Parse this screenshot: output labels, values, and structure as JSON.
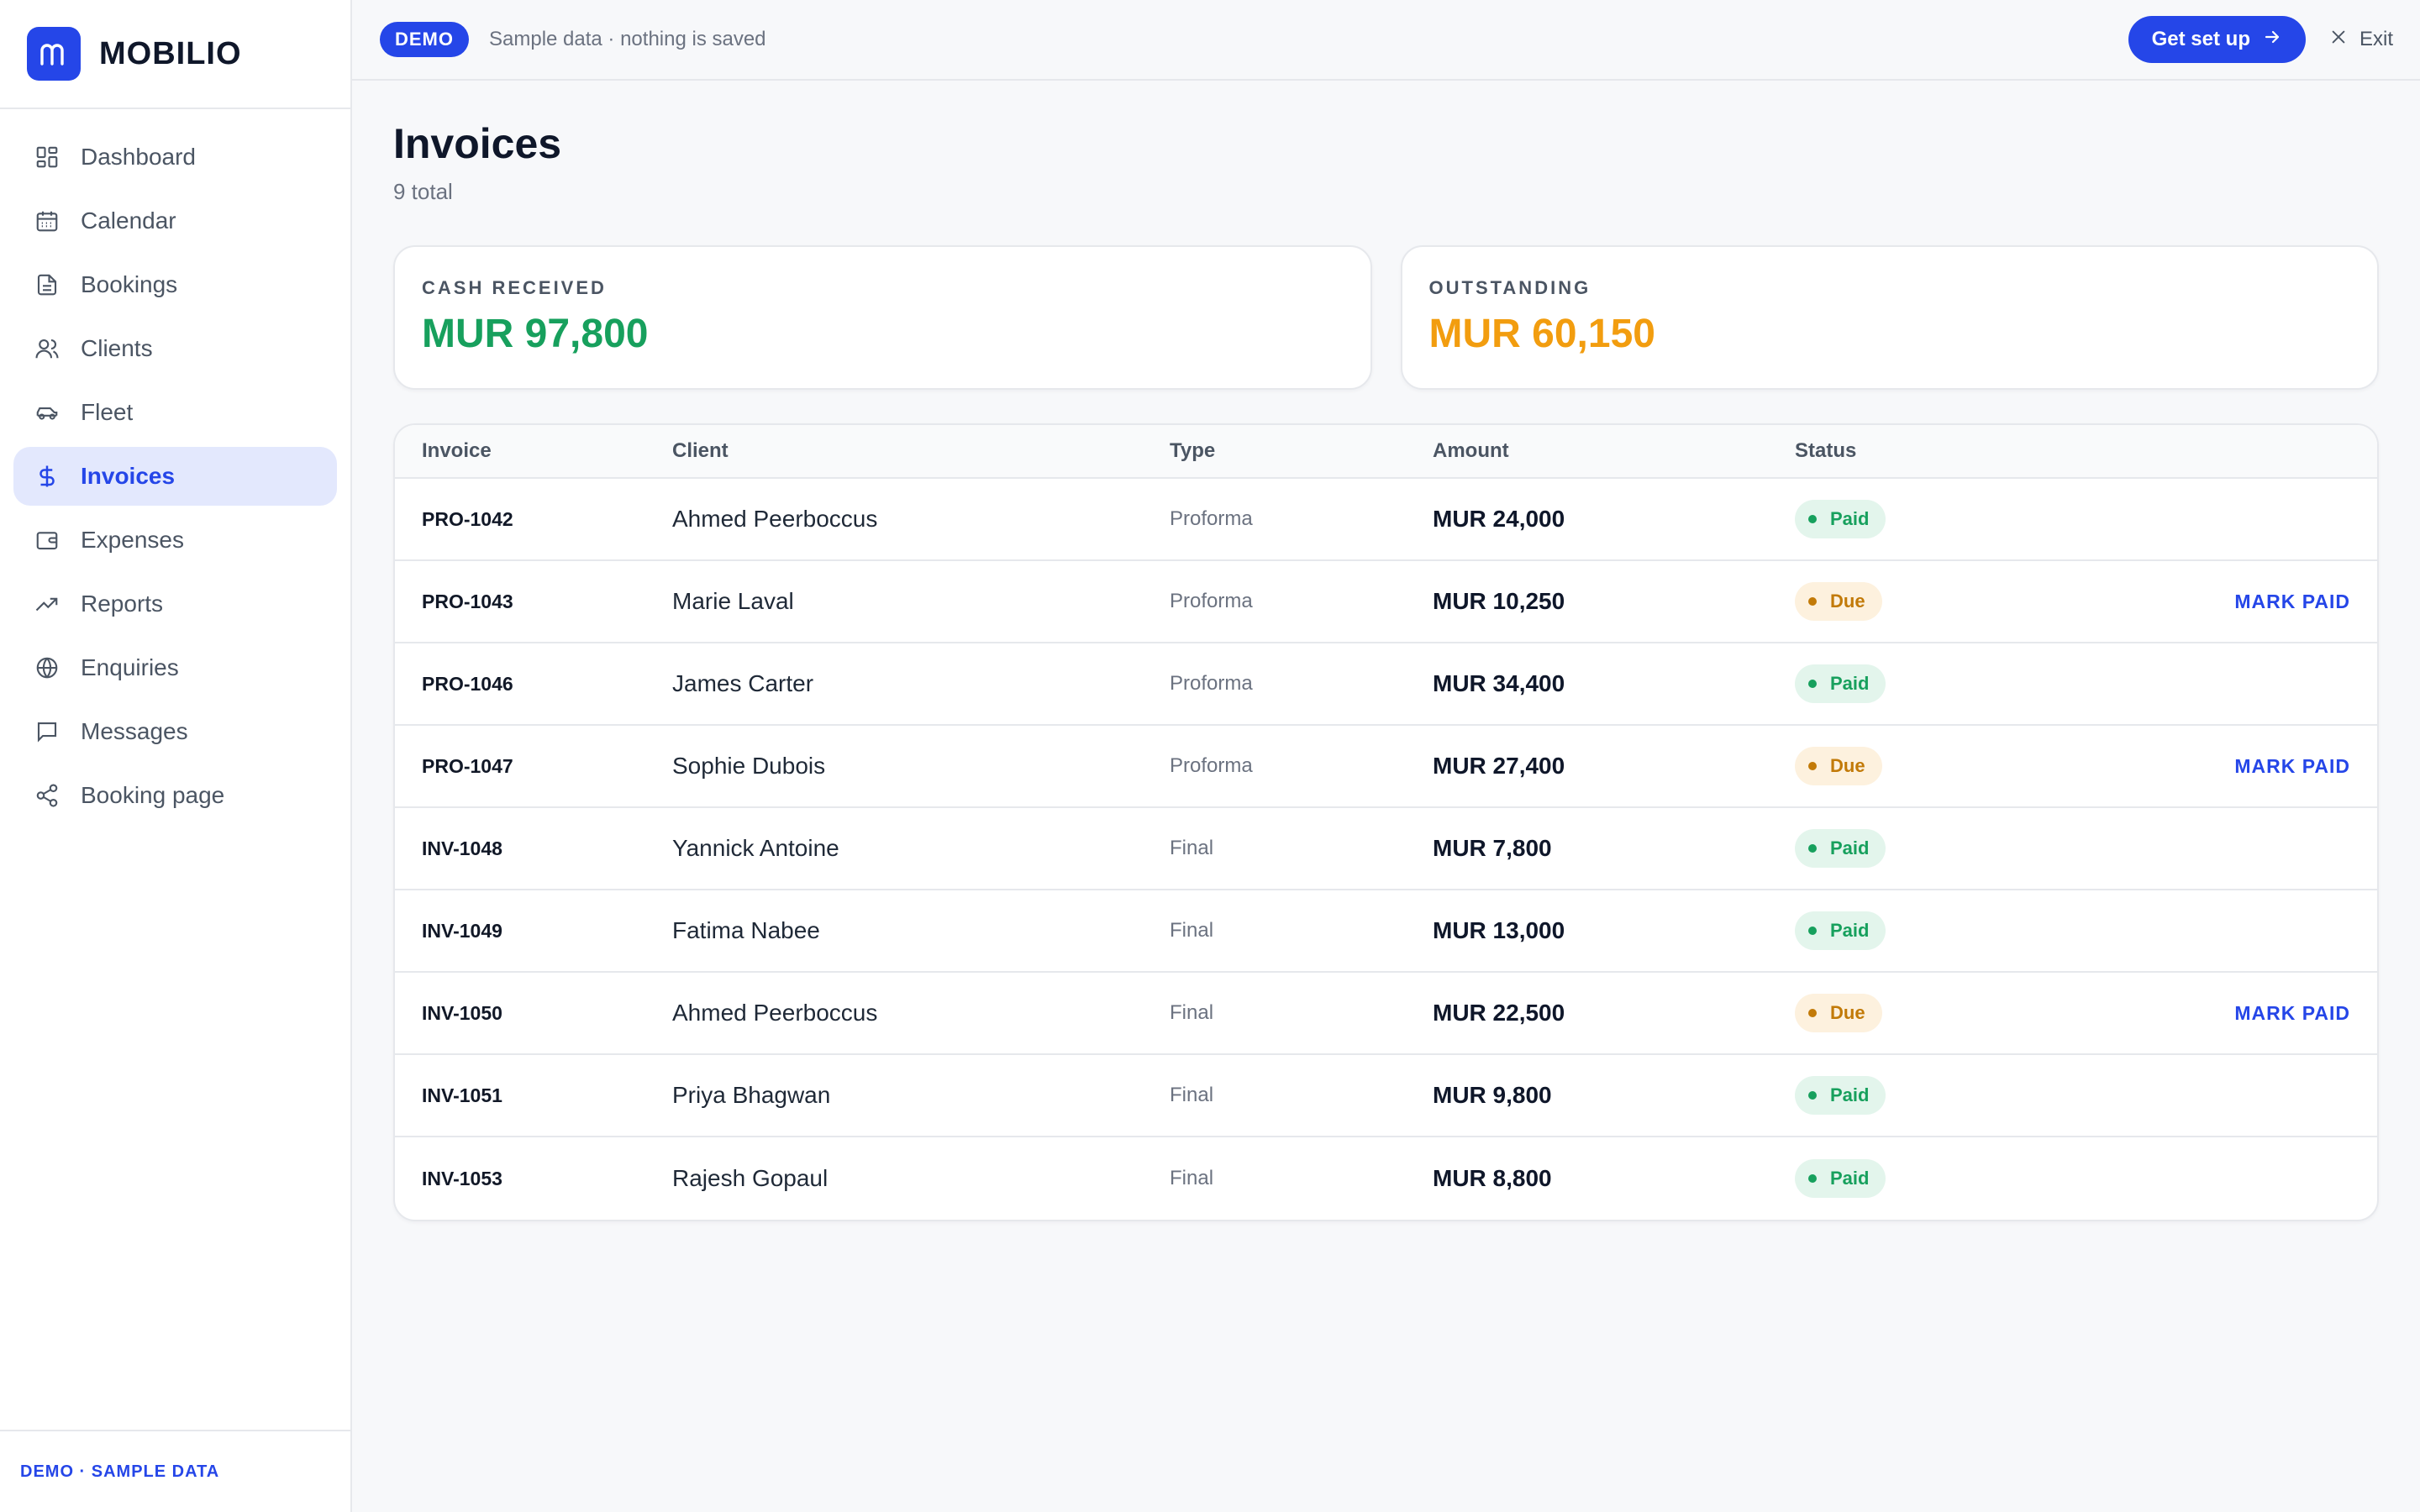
{
  "brand": {
    "name": "MOBILIO",
    "logo_letter": "m"
  },
  "sidebar": {
    "items": [
      {
        "label": "Dashboard",
        "icon": "dashboard-icon",
        "active": false
      },
      {
        "label": "Calendar",
        "icon": "calendar-icon",
        "active": false
      },
      {
        "label": "Bookings",
        "icon": "document-icon",
        "active": false
      },
      {
        "label": "Clients",
        "icon": "users-icon",
        "active": false
      },
      {
        "label": "Fleet",
        "icon": "car-icon",
        "active": false
      },
      {
        "label": "Invoices",
        "icon": "dollar-icon",
        "active": true
      },
      {
        "label": "Expenses",
        "icon": "wallet-icon",
        "active": false
      },
      {
        "label": "Reports",
        "icon": "trend-up-icon",
        "active": false
      },
      {
        "label": "Enquiries",
        "icon": "globe-icon",
        "active": false
      },
      {
        "label": "Messages",
        "icon": "message-icon",
        "active": false
      },
      {
        "label": "Booking page",
        "icon": "share-icon",
        "active": false
      }
    ],
    "footer": "DEMO · SAMPLE DATA"
  },
  "topbar": {
    "demo_badge": "DEMO",
    "demo_text": "Sample data · nothing is saved",
    "setup_label": "Get set up",
    "exit_label": "Exit"
  },
  "page": {
    "title": "Invoices",
    "subtitle": "9 total"
  },
  "summary": {
    "cash_received": {
      "label": "CASH RECEIVED",
      "value": "MUR 97,800",
      "color": "#17a05d"
    },
    "outstanding": {
      "label": "OUTSTANDING",
      "value": "MUR 60,150",
      "color": "#f29d0f"
    }
  },
  "table": {
    "headers": {
      "invoice": "Invoice",
      "client": "Client",
      "type": "Type",
      "amount": "Amount",
      "status": "Status"
    },
    "action_label": "MARK PAID",
    "rows": [
      {
        "invoice": "PRO-1042",
        "client": "Ahmed Peerboccus",
        "type": "Proforma",
        "amount": "MUR 24,000",
        "status": "Paid"
      },
      {
        "invoice": "PRO-1043",
        "client": "Marie Laval",
        "type": "Proforma",
        "amount": "MUR 10,250",
        "status": "Due"
      },
      {
        "invoice": "PRO-1046",
        "client": "James Carter",
        "type": "Proforma",
        "amount": "MUR 34,400",
        "status": "Paid"
      },
      {
        "invoice": "PRO-1047",
        "client": "Sophie Dubois",
        "type": "Proforma",
        "amount": "MUR 27,400",
        "status": "Due"
      },
      {
        "invoice": "INV-1048",
        "client": "Yannick Antoine",
        "type": "Final",
        "amount": "MUR 7,800",
        "status": "Paid"
      },
      {
        "invoice": "INV-1049",
        "client": "Fatima Nabee",
        "type": "Final",
        "amount": "MUR 13,000",
        "status": "Paid"
      },
      {
        "invoice": "INV-1050",
        "client": "Ahmed Peerboccus",
        "type": "Final",
        "amount": "MUR 22,500",
        "status": "Due"
      },
      {
        "invoice": "INV-1051",
        "client": "Priya Bhagwan",
        "type": "Final",
        "amount": "MUR 9,800",
        "status": "Paid"
      },
      {
        "invoice": "INV-1053",
        "client": "Rajesh Gopaul",
        "type": "Final",
        "amount": "MUR 8,800",
        "status": "Paid"
      }
    ]
  },
  "colors": {
    "accent": "#2546e8",
    "paid": "#17a05d",
    "due": "#c27a08",
    "outstanding": "#f29d0f"
  }
}
